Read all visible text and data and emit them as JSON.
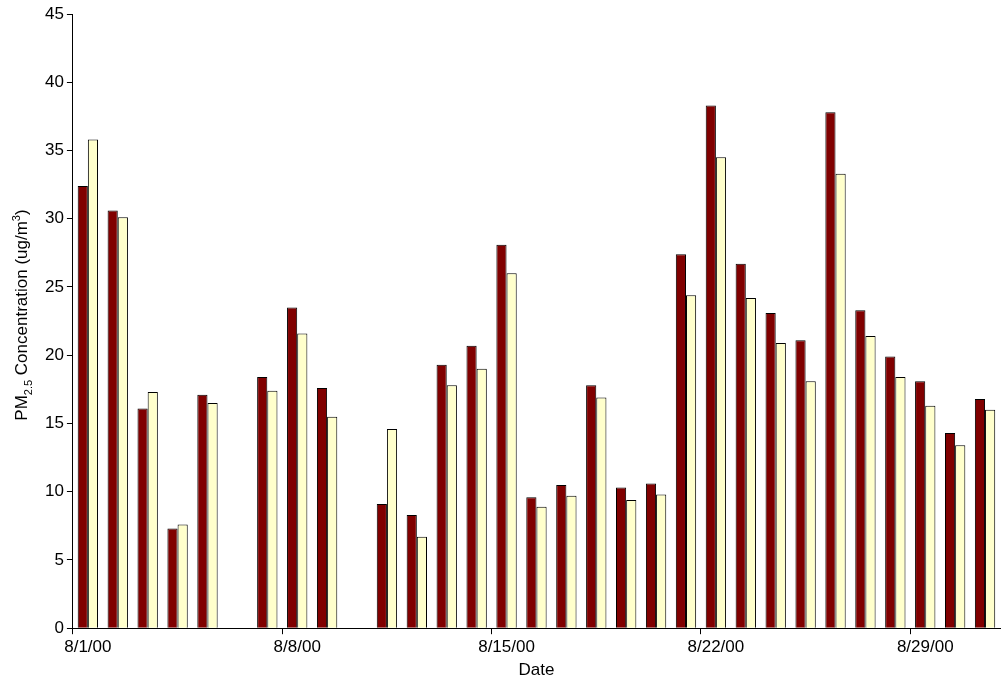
{
  "chart_data": {
    "type": "bar",
    "xlabel": "Date",
    "ylabel": "PM$_{2.5}$ Concentration (ug/m$^{3}$)",
    "categories": [
      "8/1/00",
      null,
      null,
      null,
      null,
      null,
      null,
      "8/8/00",
      null,
      null,
      null,
      null,
      null,
      null,
      "8/15/00",
      null,
      null,
      null,
      null,
      null,
      null,
      "8/22/00",
      null,
      null,
      null,
      null,
      null,
      null,
      "8/29/00",
      null,
      null
    ],
    "series": [
      {
        "color": "#800000",
        "values": [
          32.4,
          30.6,
          16.1,
          7.3,
          17.1,
          null,
          18.4,
          23.5,
          17.6,
          null,
          9.1,
          8.3,
          19.3,
          20.7,
          28.1,
          9.6,
          10.5,
          17.8,
          10.3,
          10.6,
          27.4,
          38.3,
          26.7,
          23.1,
          21.1,
          37.8,
          23.3,
          19.9,
          18.1,
          14.3,
          16.8
        ]
      },
      {
        "color": "#ffffcc",
        "values": [
          35.8,
          30.1,
          17.3,
          7.6,
          16.5,
          null,
          17.4,
          21.6,
          15.5,
          null,
          14.6,
          6.7,
          17.8,
          19.0,
          26.0,
          8.9,
          9.7,
          16.9,
          9.4,
          9.8,
          24.4,
          34.5,
          24.2,
          20.9,
          18.1,
          33.3,
          21.4,
          18.4,
          16.3,
          13.4,
          16.0
        ]
      }
    ],
    "ylim": [
      0,
      45
    ],
    "yticks": [
      0,
      5,
      10,
      15,
      20,
      25,
      30,
      35,
      40,
      45
    ],
    "grid": false,
    "legend": false
  }
}
